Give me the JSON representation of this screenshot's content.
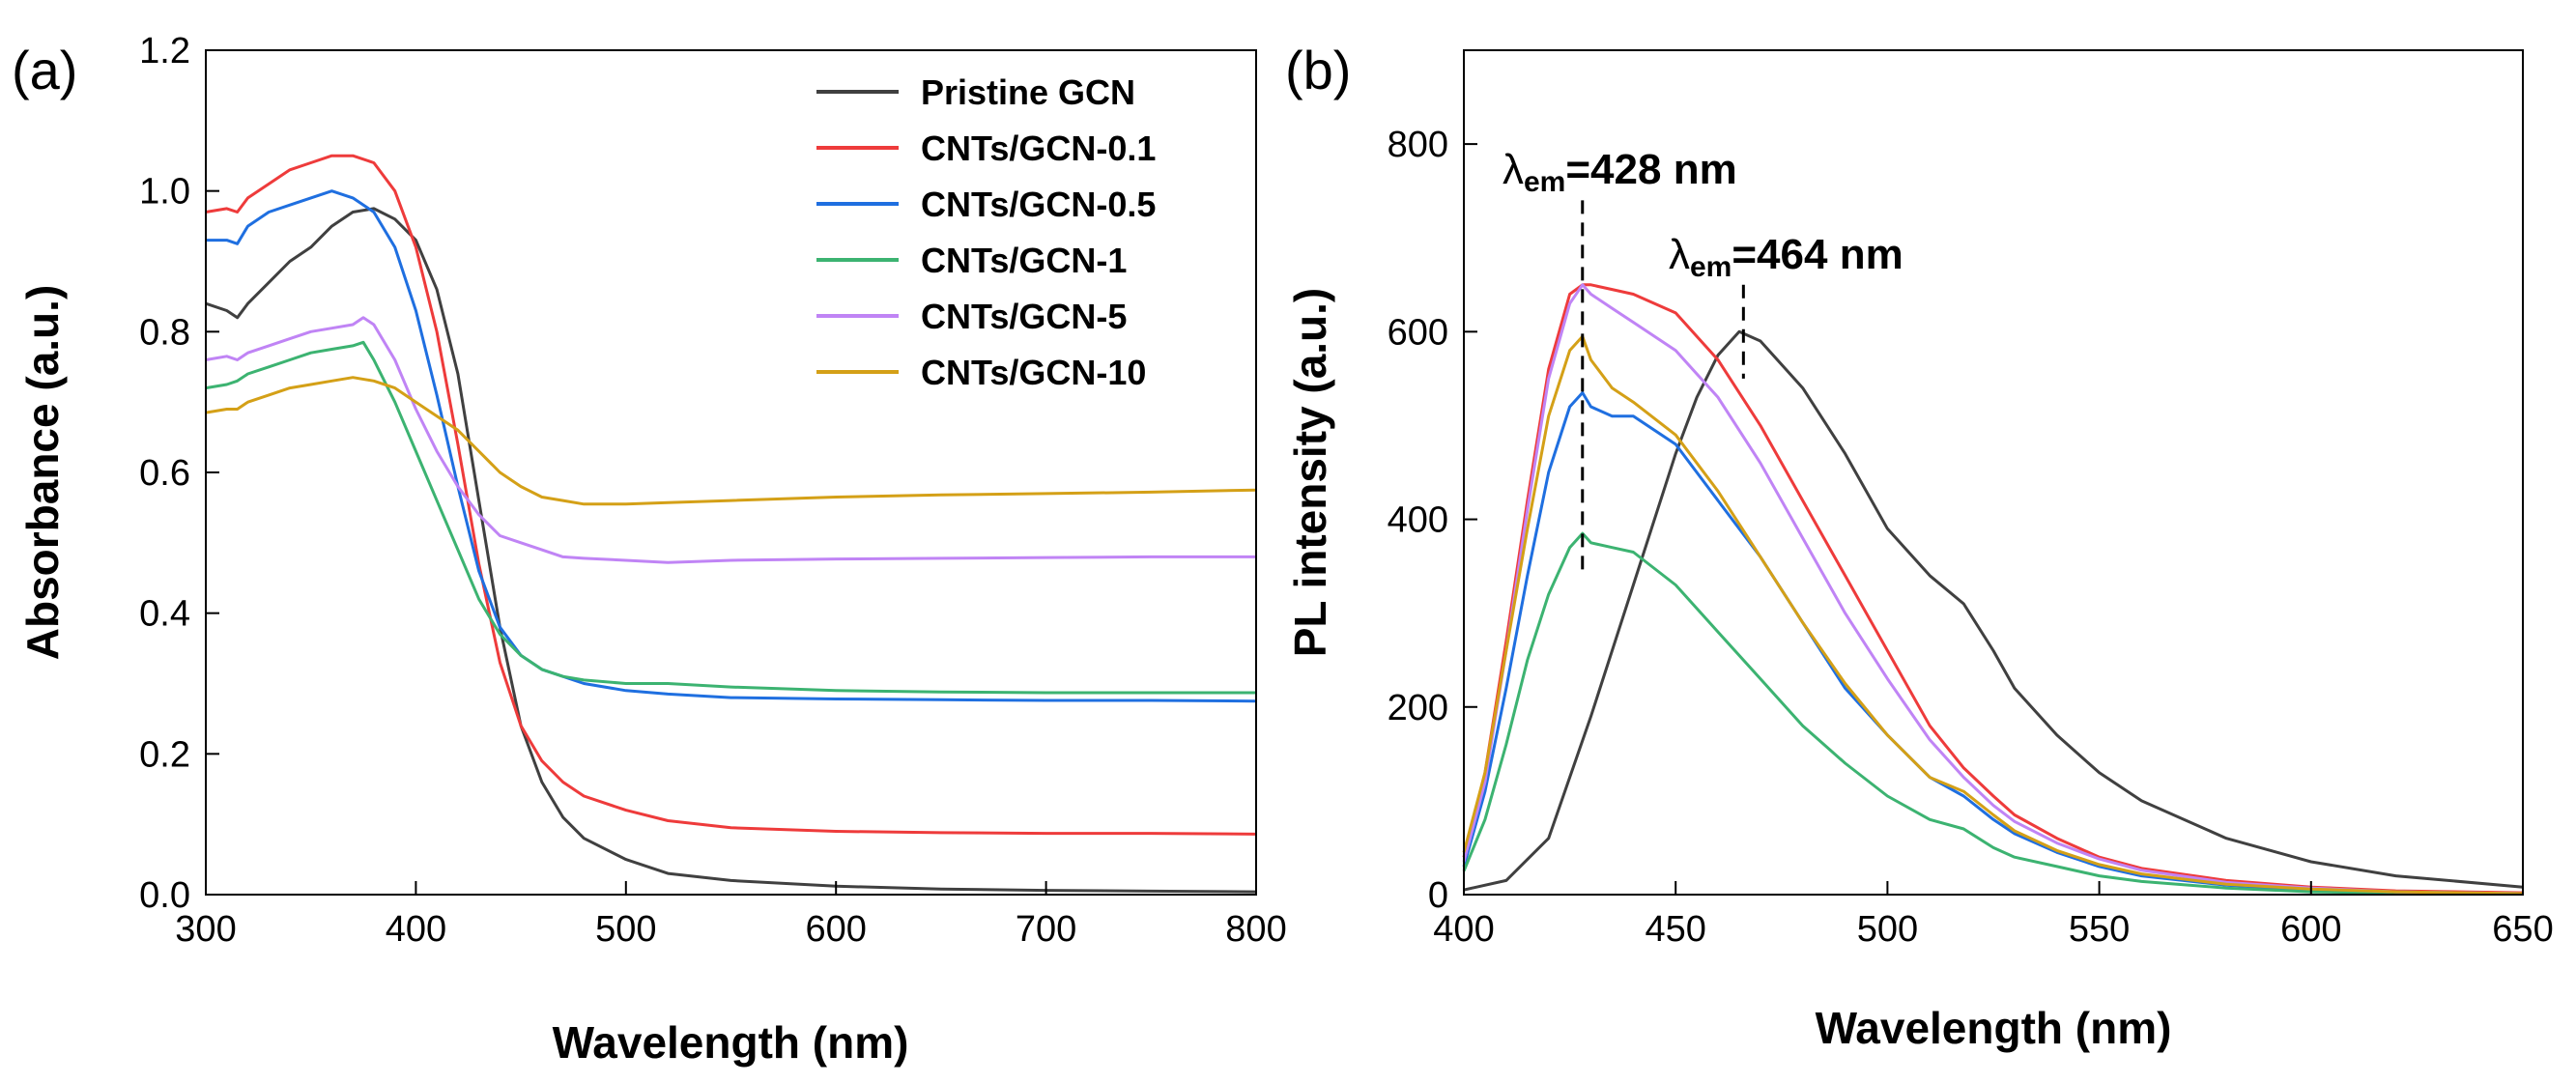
{
  "chart_data": [
    {
      "type": "line",
      "panel_label": "(a)",
      "title": "",
      "xlabel": "Wavelength (nm)",
      "ylabel": "Absorbance (a.u.)",
      "xlim": [
        300,
        800
      ],
      "ylim": [
        0.0,
        1.2
      ],
      "xticks": [
        300,
        400,
        500,
        600,
        700,
        800
      ],
      "xtick_labels": [
        "300",
        "400",
        "500",
        "600",
        "700",
        "800"
      ],
      "yticks": [
        0.0,
        0.2,
        0.4,
        0.6,
        0.8,
        1.0,
        1.2
      ],
      "ytick_labels": [
        "0.0",
        "0.2",
        "0.4",
        "0.6",
        "0.8",
        "1.0",
        "1.2"
      ],
      "grid": false,
      "legend_position": "top-right",
      "series": [
        {
          "name": "Pristine GCN",
          "color": "#404040",
          "x": [
            300,
            310,
            315,
            320,
            330,
            340,
            350,
            360,
            370,
            380,
            390,
            400,
            410,
            420,
            430,
            440,
            450,
            460,
            470,
            480,
            500,
            520,
            550,
            600,
            650,
            700,
            750,
            800
          ],
          "y": [
            0.84,
            0.83,
            0.82,
            0.84,
            0.87,
            0.9,
            0.92,
            0.95,
            0.97,
            0.975,
            0.96,
            0.93,
            0.86,
            0.74,
            0.56,
            0.38,
            0.24,
            0.16,
            0.11,
            0.08,
            0.05,
            0.03,
            0.02,
            0.012,
            0.008,
            0.006,
            0.005,
            0.004
          ]
        },
        {
          "name": "CNTs/GCN-0.1",
          "color": "#EE3B3B",
          "x": [
            300,
            310,
            315,
            320,
            330,
            340,
            350,
            360,
            370,
            380,
            390,
            400,
            410,
            420,
            430,
            440,
            450,
            460,
            470,
            480,
            500,
            520,
            550,
            600,
            650,
            700,
            750,
            800
          ],
          "y": [
            0.97,
            0.975,
            0.97,
            0.99,
            1.01,
            1.03,
            1.04,
            1.05,
            1.05,
            1.04,
            1.0,
            0.92,
            0.8,
            0.64,
            0.47,
            0.33,
            0.24,
            0.19,
            0.16,
            0.14,
            0.12,
            0.105,
            0.095,
            0.09,
            0.088,
            0.087,
            0.087,
            0.086
          ]
        },
        {
          "name": "CNTs/GCN-0.5",
          "color": "#1F6FE0",
          "x": [
            300,
            310,
            315,
            320,
            330,
            340,
            350,
            360,
            370,
            380,
            390,
            400,
            410,
            420,
            430,
            440,
            450,
            460,
            470,
            480,
            500,
            520,
            550,
            600,
            650,
            700,
            750,
            800
          ],
          "y": [
            0.93,
            0.93,
            0.925,
            0.95,
            0.97,
            0.98,
            0.99,
            1.0,
            0.99,
            0.97,
            0.92,
            0.83,
            0.71,
            0.58,
            0.46,
            0.38,
            0.34,
            0.32,
            0.31,
            0.3,
            0.29,
            0.285,
            0.28,
            0.278,
            0.277,
            0.276,
            0.276,
            0.275
          ]
        },
        {
          "name": "CNTs/GCN-1",
          "color": "#3CB371",
          "x": [
            300,
            310,
            315,
            320,
            330,
            340,
            350,
            360,
            370,
            375,
            380,
            390,
            400,
            410,
            420,
            430,
            440,
            450,
            460,
            470,
            480,
            500,
            520,
            550,
            600,
            650,
            700,
            750,
            800
          ],
          "y": [
            0.72,
            0.725,
            0.73,
            0.74,
            0.75,
            0.76,
            0.77,
            0.775,
            0.78,
            0.785,
            0.76,
            0.7,
            0.63,
            0.56,
            0.49,
            0.42,
            0.37,
            0.34,
            0.32,
            0.31,
            0.305,
            0.3,
            0.3,
            0.295,
            0.29,
            0.288,
            0.287,
            0.287,
            0.287
          ]
        },
        {
          "name": "CNTs/GCN-5",
          "color": "#C084F5",
          "x": [
            300,
            310,
            315,
            320,
            330,
            340,
            350,
            360,
            370,
            375,
            380,
            390,
            400,
            410,
            420,
            430,
            440,
            450,
            460,
            470,
            480,
            500,
            520,
            550,
            600,
            650,
            700,
            750,
            800
          ],
          "y": [
            0.76,
            0.765,
            0.76,
            0.77,
            0.78,
            0.79,
            0.8,
            0.805,
            0.81,
            0.82,
            0.81,
            0.76,
            0.69,
            0.63,
            0.58,
            0.54,
            0.51,
            0.5,
            0.49,
            0.48,
            0.478,
            0.475,
            0.472,
            0.475,
            0.477,
            0.478,
            0.479,
            0.48,
            0.48
          ]
        },
        {
          "name": "CNTs/GCN-10",
          "color": "#D4A017",
          "x": [
            300,
            310,
            315,
            320,
            330,
            340,
            350,
            360,
            370,
            380,
            390,
            400,
            410,
            420,
            430,
            440,
            450,
            460,
            470,
            480,
            500,
            520,
            550,
            600,
            650,
            700,
            750,
            800
          ],
          "y": [
            0.685,
            0.69,
            0.69,
            0.7,
            0.71,
            0.72,
            0.725,
            0.73,
            0.735,
            0.73,
            0.72,
            0.7,
            0.68,
            0.66,
            0.63,
            0.6,
            0.58,
            0.565,
            0.56,
            0.555,
            0.555,
            0.557,
            0.56,
            0.565,
            0.568,
            0.57,
            0.572,
            0.575
          ]
        }
      ]
    },
    {
      "type": "line",
      "panel_label": "(b)",
      "title": "",
      "xlabel": "Wavelength (nm)",
      "ylabel": "PL intensity (a.u.)",
      "xlim": [
        400,
        650
      ],
      "ylim": [
        0,
        900
      ],
      "xticks": [
        400,
        450,
        500,
        550,
        600,
        650
      ],
      "xtick_labels": [
        "400",
        "450",
        "500",
        "550",
        "600",
        "650"
      ],
      "yticks": [
        0,
        200,
        400,
        600,
        800
      ],
      "ytick_labels": [
        "0",
        "200",
        "400",
        "600",
        "800"
      ],
      "grid": false,
      "annotations": [
        {
          "symbol": "λ",
          "subscript": "em",
          "text": "=428 nm",
          "x": 428,
          "y_low": 340,
          "y_high": 740
        },
        {
          "symbol": "λ",
          "subscript": "em",
          "text": "=464 nm",
          "x": 466,
          "y_low": 550,
          "y_high": 650
        }
      ],
      "series": [
        {
          "name": "Pristine GCN",
          "color": "#404040",
          "x": [
            400,
            410,
            420,
            430,
            440,
            450,
            455,
            460,
            465,
            470,
            480,
            490,
            500,
            510,
            518,
            525,
            530,
            540,
            550,
            560,
            580,
            600,
            620,
            650
          ],
          "y": [
            5,
            15,
            60,
            190,
            330,
            470,
            530,
            575,
            600,
            590,
            540,
            470,
            390,
            340,
            310,
            260,
            220,
            170,
            130,
            100,
            60,
            35,
            20,
            8
          ]
        },
        {
          "name": "CNTs/GCN-0.1",
          "color": "#EE3B3B",
          "x": [
            400,
            405,
            410,
            415,
            420,
            425,
            428,
            430,
            435,
            440,
            450,
            460,
            470,
            480,
            490,
            500,
            510,
            518,
            525,
            530,
            540,
            550,
            560,
            580,
            600,
            620,
            650
          ],
          "y": [
            40,
            130,
            270,
            420,
            560,
            640,
            650,
            650,
            645,
            640,
            620,
            570,
            500,
            420,
            340,
            260,
            180,
            135,
            105,
            85,
            60,
            40,
            28,
            15,
            8,
            4,
            2
          ]
        },
        {
          "name": "CNTs/GCN-0.5",
          "color": "#1F6FE0",
          "x": [
            400,
            405,
            410,
            415,
            420,
            425,
            428,
            430,
            435,
            440,
            450,
            460,
            470,
            480,
            490,
            500,
            510,
            518,
            525,
            530,
            540,
            550,
            560,
            580,
            600,
            620,
            650
          ],
          "y": [
            30,
            110,
            220,
            340,
            450,
            520,
            535,
            520,
            510,
            510,
            480,
            420,
            360,
            290,
            220,
            170,
            125,
            105,
            80,
            65,
            45,
            30,
            20,
            10,
            5,
            3,
            1
          ]
        },
        {
          "name": "CNTs/GCN-1",
          "color": "#3CB371",
          "x": [
            400,
            405,
            410,
            415,
            420,
            425,
            428,
            430,
            435,
            440,
            450,
            460,
            470,
            480,
            490,
            500,
            510,
            518,
            525,
            530,
            540,
            550,
            560,
            580,
            600,
            620,
            650
          ],
          "y": [
            25,
            80,
            160,
            250,
            320,
            370,
            385,
            375,
            370,
            365,
            330,
            280,
            230,
            180,
            140,
            105,
            80,
            70,
            50,
            40,
            30,
            20,
            14,
            7,
            3,
            2,
            1
          ]
        },
        {
          "name": "CNTs/GCN-5",
          "color": "#C084F5",
          "x": [
            400,
            405,
            410,
            415,
            420,
            425,
            428,
            430,
            435,
            440,
            450,
            460,
            470,
            480,
            490,
            500,
            510,
            518,
            525,
            530,
            540,
            550,
            560,
            580,
            600,
            620,
            650
          ],
          "y": [
            35,
            120,
            260,
            410,
            550,
            630,
            650,
            640,
            625,
            610,
            580,
            530,
            460,
            380,
            300,
            230,
            165,
            125,
            95,
            78,
            55,
            38,
            26,
            13,
            7,
            3,
            1
          ]
        },
        {
          "name": "CNTs/GCN-10",
          "color": "#D4A017",
          "x": [
            400,
            405,
            410,
            415,
            420,
            425,
            428,
            430,
            435,
            440,
            450,
            460,
            470,
            480,
            490,
            500,
            510,
            518,
            525,
            530,
            540,
            550,
            560,
            580,
            600,
            620,
            650
          ],
          "y": [
            45,
            130,
            260,
            390,
            510,
            580,
            595,
            570,
            540,
            525,
            490,
            430,
            360,
            290,
            225,
            170,
            125,
            110,
            85,
            68,
            47,
            32,
            22,
            11,
            6,
            3,
            1
          ]
        }
      ]
    }
  ]
}
